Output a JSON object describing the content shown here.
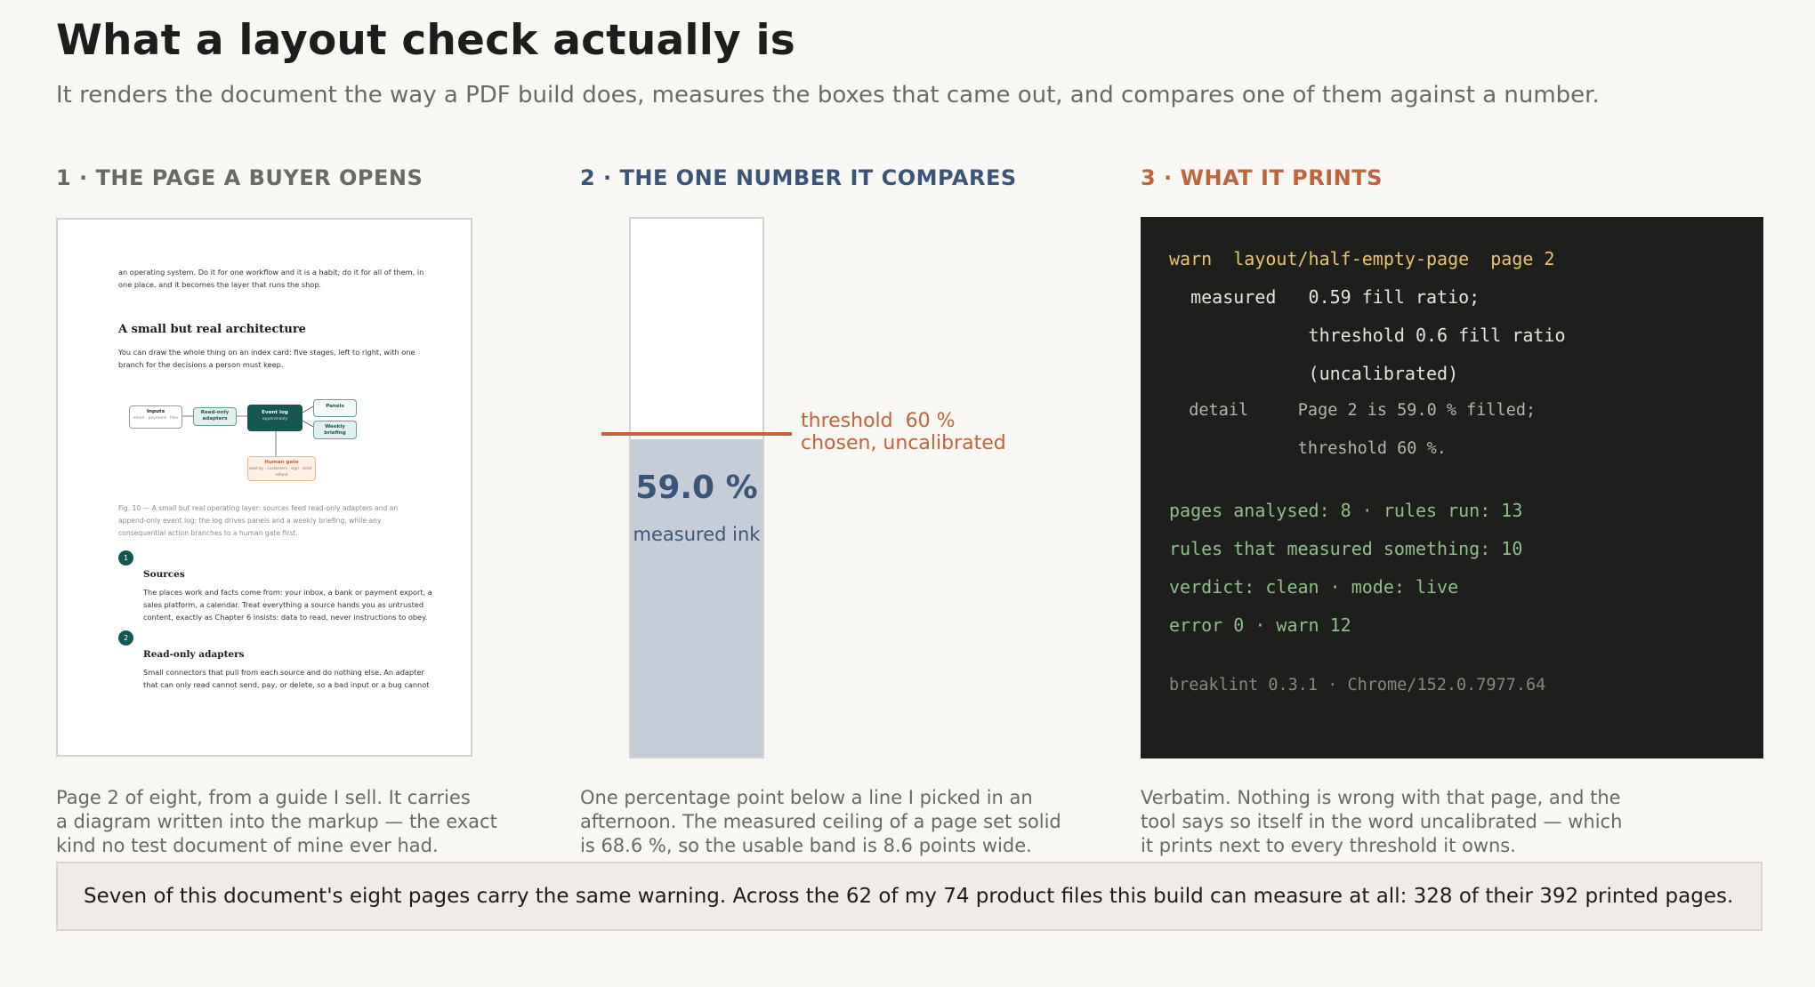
{
  "title": "What a layout check actually is",
  "subtitle": "It renders the document the way a PDF build does, measures the boxes that came out, and compares one of them against a number.",
  "columns": {
    "page": {
      "heading": "1 · THE PAGE A BUYER OPENS",
      "caption": [
        "Page 2 of eight, from a guide I sell. It carries",
        "a diagram written into the markup — the exact",
        "kind no test document of mine ever had."
      ],
      "thumbnail": {
        "intro": [
          "an operating system. Do it for one workflow and it is a habit; do it for all of them, in",
          "one place, and it becomes the layer that runs the shop."
        ],
        "section_title": "A small but real architecture",
        "section_body": [
          "You can draw the whole thing on an index card: five stages, left to right, with one",
          "branch for the decisions a person must keep."
        ],
        "diagram": {
          "inputs": "Inputs",
          "inputs_sub": "email · payment · files",
          "adapters": "Read-only adapters",
          "event_log": "Event log",
          "event_log_sub": "append-only",
          "panels": "Panels",
          "weekly": "Weekly briefing",
          "human_gate": "Human gate",
          "human_gate_sub": "read by · customers · sign · send · refund"
        },
        "figure_caption": [
          "Fig. 10 — A small but real operating layer: sources feed read-only adapters and an",
          "append-only event log; the log drives panels and a weekly briefing, while any",
          "consequential action branches to a human gate first."
        ],
        "items": [
          {
            "num": "1",
            "title": "Sources",
            "body": [
              "The places work and facts come from: your inbox, a bank or payment export, a",
              "sales platform, a calendar. Treat everything a source hands you as untrusted",
              "content, exactly as Chapter 6 insists: data to read, never instructions to obey."
            ]
          },
          {
            "num": "2",
            "title": "Read-only adapters",
            "body": [
              "Small connectors that pull from each source and do nothing else. An adapter",
              "that can only read cannot send, pay, or delete, so a bad input or a bug cannot"
            ]
          }
        ]
      }
    },
    "gauge": {
      "heading": "2 · THE ONE NUMBER IT COMPARES",
      "measured_fraction": 0.59,
      "threshold_fraction": 0.6,
      "value_label": "59.0 %",
      "value_sub": "measured ink",
      "threshold_label": "threshold  60 %",
      "threshold_sub": "chosen, uncalibrated",
      "caption": [
        "One percentage point below a line I picked in an",
        "afternoon. The measured ceiling of a page set solid",
        "is 68.6 %, so the usable band is 8.6 points wide."
      ]
    },
    "terminal": {
      "heading": "3 · WHAT IT PRINTS",
      "lines": [
        "warn  layout/half-empty-page  page 2",
        "  measured   0.59 fill ratio;",
        "             threshold 0.6 fill ratio",
        "             (uncalibrated)",
        "  detail     Page 2 is 59.0 % filled;",
        "             threshold 60 %.",
        "pages analysed: 8 · rules run: 13",
        "rules that measured something: 10",
        "verdict: clean · mode: live",
        "error 0 · warn 12",
        "breaklint 0.3.1 · Chrome/152.0.7977.64"
      ],
      "colors": {
        "warn": "#e9c46a",
        "body": "#e6e4df",
        "detail": "#b7b4ae",
        "summary": "#8fbf8a",
        "footer": "#8a8781"
      },
      "caption": [
        "Verbatim. Nothing is wrong with that page, and the",
        "tool says so itself in the word uncalibrated — which",
        "it prints next to every threshold it owns."
      ]
    }
  },
  "footer": "Seven of this document's eight pages carry the same warning. Across the 62 of my 74 product files this build can measure at all: 328 of their 392 printed pages."
}
